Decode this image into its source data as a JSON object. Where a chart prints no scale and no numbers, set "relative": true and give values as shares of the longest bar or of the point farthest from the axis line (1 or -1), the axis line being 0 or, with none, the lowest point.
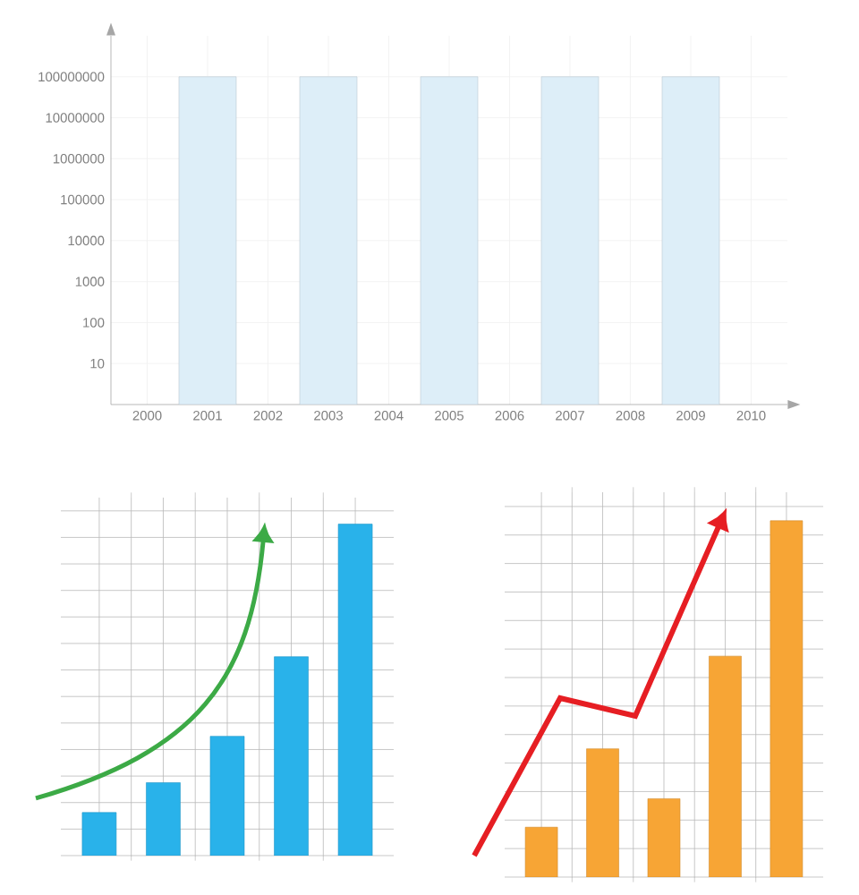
{
  "chart_data": [
    {
      "type": "bar",
      "categories": [
        "2000",
        "2001",
        "2002",
        "2003",
        "2004",
        "2005",
        "2006",
        "2007",
        "2008",
        "2009",
        "2010"
      ],
      "values": [
        null,
        100000000,
        null,
        100000000,
        null,
        100000000,
        null,
        100000000,
        null,
        100000000,
        null
      ],
      "color": "#ddeef8",
      "log": true,
      "ylim": [
        1,
        1000000000
      ],
      "yticks": [
        10,
        100,
        1000,
        10000,
        100000,
        1000000,
        10000000,
        100000000
      ],
      "grid": true
    },
    {
      "type": "bar",
      "relative": true,
      "categories": [
        null,
        null,
        null,
        null,
        null
      ],
      "values": [
        0.13,
        0.22,
        0.36,
        0.6,
        1
      ],
      "color": "#29b2ea",
      "grid": true
    },
    {
      "type": "bar",
      "relative": true,
      "categories": [
        null,
        null,
        null,
        null,
        null
      ],
      "values": [
        0.14,
        0.36,
        0.22,
        0.62,
        1
      ],
      "color": "#f7a535",
      "grid": true
    }
  ]
}
